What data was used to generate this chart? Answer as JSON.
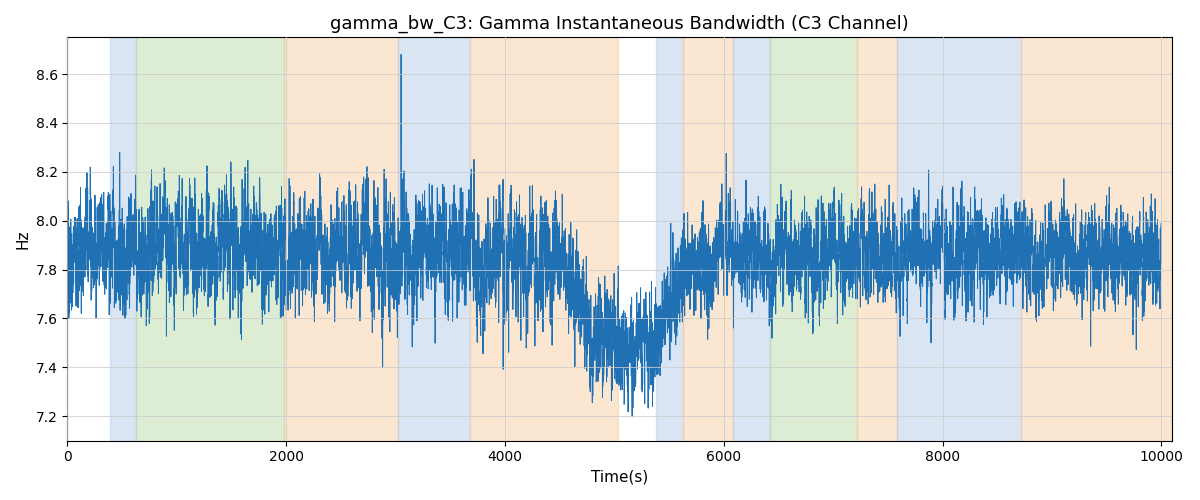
{
  "title": "gamma_bw_C3: Gamma Instantaneous Bandwidth (C3 Channel)",
  "xlabel": "Time(s)",
  "ylabel": "Hz",
  "xlim": [
    0,
    10100
  ],
  "ylim": [
    7.1,
    8.75
  ],
  "yticks": [
    7.2,
    7.4,
    7.6,
    7.8,
    8.0,
    8.2,
    8.4,
    8.6
  ],
  "xticks": [
    0,
    2000,
    4000,
    6000,
    8000,
    10000
  ],
  "line_color": "#2070b4",
  "line_width": 0.7,
  "seed": 42,
  "n_points": 10000,
  "background_regions": [
    {
      "xmin": 390,
      "xmax": 630,
      "color": "#aec6e8",
      "alpha": 0.45
    },
    {
      "xmin": 630,
      "xmax": 1980,
      "color": "#b5d9a0",
      "alpha": 0.45
    },
    {
      "xmin": 1980,
      "xmax": 3020,
      "color": "#f5c99a",
      "alpha": 0.45
    },
    {
      "xmin": 3020,
      "xmax": 3680,
      "color": "#aec6e8",
      "alpha": 0.45
    },
    {
      "xmin": 3680,
      "xmax": 5030,
      "color": "#f5c99a",
      "alpha": 0.45
    },
    {
      "xmin": 5380,
      "xmax": 5630,
      "color": "#aec6e8",
      "alpha": 0.45
    },
    {
      "xmin": 5630,
      "xmax": 6080,
      "color": "#f5c99a",
      "alpha": 0.45
    },
    {
      "xmin": 6080,
      "xmax": 6420,
      "color": "#aec6e8",
      "alpha": 0.45
    },
    {
      "xmin": 6420,
      "xmax": 7220,
      "color": "#b5d9a0",
      "alpha": 0.45
    },
    {
      "xmin": 7220,
      "xmax": 7580,
      "color": "#f5c99a",
      "alpha": 0.45
    },
    {
      "xmin": 7580,
      "xmax": 8720,
      "color": "#aec6e8",
      "alpha": 0.45
    },
    {
      "xmin": 8720,
      "xmax": 10100,
      "color": "#f5c99a",
      "alpha": 0.45
    }
  ],
  "title_fontsize": 13,
  "label_fontsize": 11,
  "tick_fontsize": 10,
  "figsize": [
    12,
    5
  ],
  "dpi": 100,
  "grid_color": "#cccccc",
  "grid_alpha": 0.8,
  "grid_linewidth": 0.7
}
